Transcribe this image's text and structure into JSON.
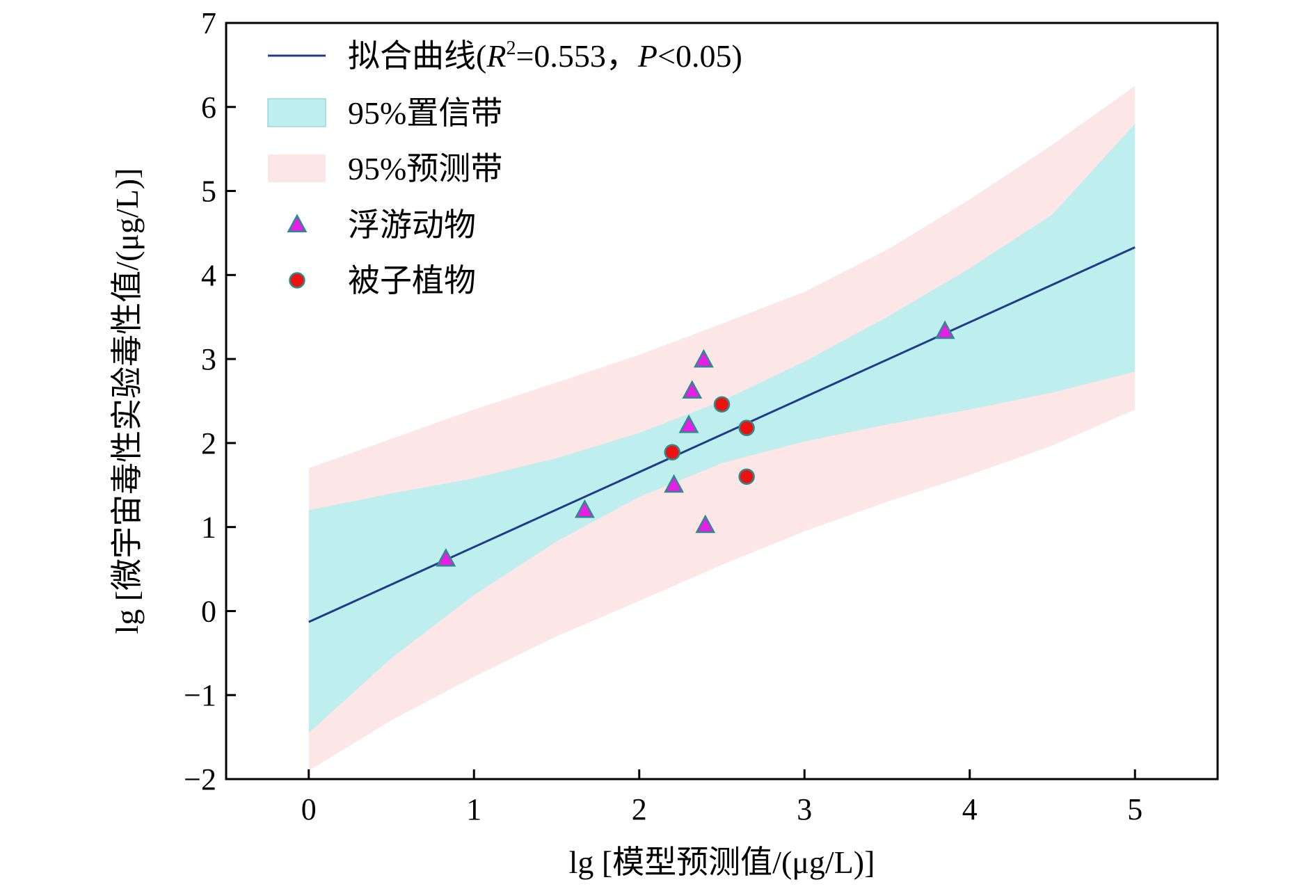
{
  "chart_data": {
    "type": "scatter",
    "xlabel": "lg [模型预测值/(μg/L)]",
    "ylabel": "lg [微宇宙毒性实验毒性值/(μg/L)]",
    "xlim": [
      -0.5,
      5.5
    ],
    "ylim": [
      -2,
      7
    ],
    "x_ticks": [
      0,
      1,
      2,
      3,
      4,
      5
    ],
    "x_tick_labels": [
      "0",
      "1",
      "2",
      "3",
      "4",
      "5"
    ],
    "y_ticks": [
      -2,
      -1,
      0,
      1,
      2,
      3,
      4,
      5,
      6,
      7
    ],
    "y_tick_labels": [
      "−2",
      "−1",
      "0",
      "1",
      "2",
      "3",
      "4",
      "5",
      "6",
      "7"
    ],
    "grid": false,
    "legend_position": "top-left",
    "legend": [
      {
        "key": "fit",
        "label_prefix": "拟合曲线(",
        "r_symbol": "R",
        "r_sup": "2",
        "r_value": "=0.553，",
        "p_symbol": "P",
        "p_value": "<0.05)"
      },
      {
        "key": "ci",
        "label": "95%置信带"
      },
      {
        "key": "pi",
        "label": "95%预测带"
      },
      {
        "key": "zoo",
        "label": "浮游动物"
      },
      {
        "key": "plant",
        "label": "被子植物"
      }
    ],
    "fit_line": {
      "x": [
        0,
        5
      ],
      "y": [
        -0.13,
        4.33
      ],
      "color": "#1f3c8a"
    },
    "confidence_band": {
      "color": "#bfeeee",
      "x": [
        0,
        0.5,
        1,
        1.5,
        2,
        2.5,
        3,
        3.5,
        4,
        4.5,
        5
      ],
      "upper": [
        1.2,
        1.4,
        1.58,
        1.82,
        2.12,
        2.5,
        2.97,
        3.5,
        4.08,
        4.72,
        5.8
      ],
      "lower": [
        -1.45,
        -0.56,
        0.19,
        0.83,
        1.36,
        1.76,
        2.02,
        2.22,
        2.4,
        2.6,
        2.85
      ]
    },
    "prediction_band": {
      "color": "#fde6e6",
      "x": [
        0,
        0.5,
        1,
        1.5,
        2,
        2.5,
        3,
        3.5,
        4,
        4.5,
        5
      ],
      "upper": [
        1.7,
        2.05,
        2.4,
        2.72,
        3.05,
        3.42,
        3.8,
        4.3,
        4.9,
        5.55,
        6.25
      ],
      "lower": [
        -1.9,
        -1.3,
        -0.78,
        -0.3,
        0.12,
        0.55,
        0.95,
        1.3,
        1.62,
        1.97,
        2.4
      ]
    },
    "series": [
      {
        "name": "浮游动物",
        "marker": "triangle",
        "color": "#e61ee6",
        "edge": "#2e8b8b",
        "x": [
          0.83,
          1.67,
          2.21,
          2.3,
          2.32,
          2.39,
          2.4,
          3.85
        ],
        "y": [
          0.62,
          1.2,
          1.5,
          2.21,
          2.62,
          2.99,
          1.02,
          3.33
        ]
      },
      {
        "name": "被子植物",
        "marker": "circle",
        "color": "#ee1111",
        "edge": "#2e8b8b",
        "x": [
          2.2,
          2.5,
          2.65,
          2.65
        ],
        "y": [
          1.89,
          2.46,
          2.18,
          1.6
        ]
      }
    ]
  }
}
